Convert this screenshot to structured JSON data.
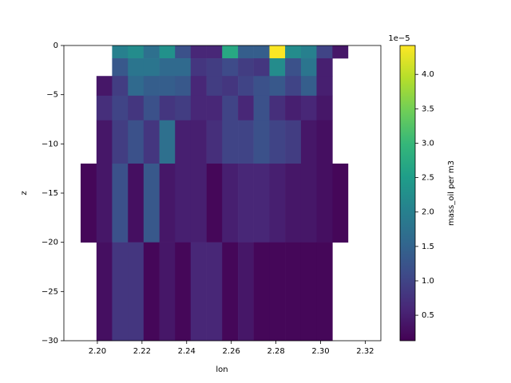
{
  "chart_data": {
    "type": "heatmap",
    "colormap": "viridis",
    "x_label": "lon",
    "y_label": "z",
    "colorbar_label": "mass_oil per m3",
    "colorbar_offset": "1e−5",
    "x_edges": [
      2.1925,
      2.1996,
      2.2066,
      2.2137,
      2.2207,
      2.2278,
      2.2348,
      2.2418,
      2.2489,
      2.2559,
      2.263,
      2.27,
      2.2771,
      2.2841,
      2.2912,
      2.2982,
      2.3053,
      2.3123
    ],
    "y_edges": [
      0,
      -1.3,
      -3.1,
      -5.1,
      -7.6,
      -12,
      -20,
      -30
    ],
    "values": [
      [
        null,
        null,
        2.0,
        2.2,
        1.7,
        2.3,
        1.2,
        0.6,
        0.6,
        2.7,
        1.4,
        1.4,
        4.4,
        2.2,
        2.0,
        1.0,
        0.4
      ],
      [
        null,
        null,
        1.3,
        1.8,
        1.8,
        1.6,
        1.6,
        0.8,
        0.9,
        1.1,
        0.9,
        0.8,
        2.2,
        1.2,
        1.8,
        0.5,
        null
      ],
      [
        null,
        0.4,
        0.9,
        1.6,
        1.4,
        1.4,
        1.3,
        0.6,
        0.9,
        0.8,
        1.0,
        1.2,
        1.3,
        1.0,
        1.4,
        0.5,
        null
      ],
      [
        null,
        0.7,
        1.0,
        0.8,
        1.2,
        0.8,
        0.9,
        0.6,
        0.6,
        1.0,
        0.6,
        1.2,
        0.7,
        0.5,
        0.6,
        0.4,
        null
      ],
      [
        null,
        0.4,
        0.9,
        1.2,
        0.8,
        1.7,
        0.5,
        0.5,
        0.7,
        1.0,
        1.0,
        1.2,
        1.0,
        0.9,
        0.4,
        0.3,
        null
      ],
      [
        0.2,
        0.4,
        1.2,
        0.3,
        1.3,
        0.4,
        0.5,
        0.5,
        0.2,
        0.5,
        0.6,
        0.6,
        0.5,
        0.4,
        0.4,
        0.3,
        0.2
      ],
      [
        null,
        0.3,
        0.8,
        0.8,
        0.2,
        0.4,
        0.2,
        0.6,
        0.6,
        0.2,
        0.4,
        0.2,
        0.2,
        0.2,
        0.2,
        0.2,
        null
      ]
    ],
    "xlim": [
      2.185,
      2.327
    ],
    "xticks": [
      {
        "value": 2.2,
        "label": "2.20"
      },
      {
        "value": 2.22,
        "label": "2.22"
      },
      {
        "value": 2.24,
        "label": "2.24"
      },
      {
        "value": 2.26,
        "label": "2.26"
      },
      {
        "value": 2.28,
        "label": "2.28"
      },
      {
        "value": 2.3,
        "label": "2.30"
      },
      {
        "value": 2.32,
        "label": "2.32"
      }
    ],
    "ylim": [
      -30,
      0
    ],
    "yticks": [
      0,
      {
        "value": -5,
        "label": "−5"
      },
      {
        "value": -10,
        "label": "−10"
      },
      {
        "value": -15,
        "label": "−15"
      },
      {
        "value": -20,
        "label": "−20"
      },
      {
        "value": -25,
        "label": "−25"
      },
      {
        "value": -30,
        "label": "−30"
      }
    ],
    "clim": [
      0.13,
      4.42
    ],
    "cticks": [
      0.5,
      {
        "value": 1,
        "label": "1.0"
      },
      1.5,
      {
        "value": 2,
        "label": "2.0"
      },
      2.5,
      {
        "value": 3,
        "label": "3.0"
      },
      3.5,
      {
        "value": 4,
        "label": "4.0"
      }
    ]
  }
}
